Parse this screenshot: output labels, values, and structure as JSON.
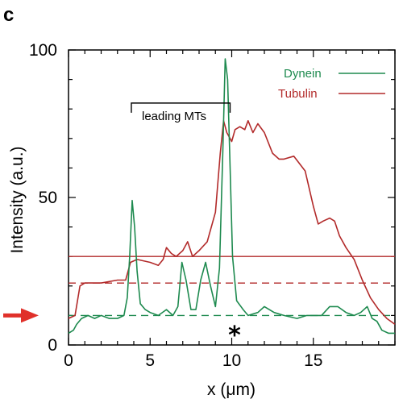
{
  "panel_label": "c",
  "colors": {
    "dynein": "#1e8a4f",
    "tubulin": "#b22a2a",
    "arrow": "#e0302a"
  },
  "chart_data": {
    "type": "line",
    "xlabel": "x (μm)",
    "ylabel": "Intensity (a.u.)",
    "xlim": [
      0,
      20
    ],
    "ylim": [
      0,
      100
    ],
    "x_ticks": [
      0,
      5,
      10,
      15
    ],
    "y_ticks": [
      0,
      50,
      100
    ],
    "legend_position": "top-right",
    "series": [
      {
        "name": "Dynein",
        "color": "#1e8a4f",
        "points": [
          [
            0,
            4
          ],
          [
            0.3,
            5
          ],
          [
            0.5,
            7
          ],
          [
            0.8,
            9
          ],
          [
            1.2,
            10
          ],
          [
            1.6,
            9
          ],
          [
            2.0,
            10
          ],
          [
            2.5,
            9
          ],
          [
            3.0,
            9
          ],
          [
            3.4,
            10
          ],
          [
            3.6,
            16
          ],
          [
            3.75,
            30
          ],
          [
            3.9,
            49
          ],
          [
            4.05,
            40
          ],
          [
            4.2,
            25
          ],
          [
            4.4,
            14
          ],
          [
            4.7,
            12
          ],
          [
            5.0,
            11
          ],
          [
            5.5,
            10
          ],
          [
            6.0,
            12
          ],
          [
            6.4,
            10
          ],
          [
            6.7,
            13
          ],
          [
            6.95,
            28
          ],
          [
            7.2,
            22
          ],
          [
            7.5,
            12
          ],
          [
            7.8,
            12
          ],
          [
            8.1,
            22
          ],
          [
            8.4,
            28
          ],
          [
            8.7,
            20
          ],
          [
            9.0,
            13
          ],
          [
            9.25,
            26
          ],
          [
            9.45,
            65
          ],
          [
            9.6,
            97
          ],
          [
            9.75,
            90
          ],
          [
            9.9,
            60
          ],
          [
            10.05,
            30
          ],
          [
            10.3,
            15
          ],
          [
            10.7,
            12
          ],
          [
            11.0,
            10
          ],
          [
            11.6,
            11
          ],
          [
            12.0,
            13
          ],
          [
            12.6,
            11
          ],
          [
            13.2,
            10
          ],
          [
            14.0,
            9
          ],
          [
            14.6,
            10
          ],
          [
            15.0,
            10
          ],
          [
            15.5,
            10
          ],
          [
            16.0,
            13
          ],
          [
            16.5,
            13
          ],
          [
            17.0,
            11
          ],
          [
            17.5,
            10
          ],
          [
            17.9,
            11
          ],
          [
            18.3,
            13
          ],
          [
            18.6,
            9
          ],
          [
            18.9,
            8
          ],
          [
            19.2,
            5
          ],
          [
            19.6,
            4
          ],
          [
            20,
            4
          ]
        ]
      },
      {
        "name": "Tubulin",
        "color": "#b22a2a",
        "points": [
          [
            0,
            9
          ],
          [
            0.4,
            10
          ],
          [
            0.7,
            20
          ],
          [
            1.0,
            21
          ],
          [
            2.0,
            21
          ],
          [
            3.0,
            22
          ],
          [
            3.5,
            22
          ],
          [
            3.8,
            28
          ],
          [
            4.2,
            29
          ],
          [
            5.0,
            28
          ],
          [
            5.5,
            27
          ],
          [
            5.8,
            29
          ],
          [
            6.0,
            33
          ],
          [
            6.3,
            31
          ],
          [
            6.6,
            30
          ],
          [
            7.0,
            32
          ],
          [
            7.3,
            35
          ],
          [
            7.6,
            30
          ],
          [
            8.0,
            32
          ],
          [
            8.5,
            35
          ],
          [
            9.0,
            45
          ],
          [
            9.3,
            65
          ],
          [
            9.5,
            76
          ],
          [
            9.7,
            72
          ],
          [
            10.0,
            69
          ],
          [
            10.2,
            73
          ],
          [
            10.5,
            74
          ],
          [
            10.8,
            73
          ],
          [
            11.0,
            76
          ],
          [
            11.3,
            72
          ],
          [
            11.6,
            75
          ],
          [
            12.0,
            72
          ],
          [
            12.5,
            65
          ],
          [
            12.9,
            63
          ],
          [
            13.2,
            63
          ],
          [
            13.8,
            64
          ],
          [
            14.5,
            59
          ],
          [
            15.0,
            47
          ],
          [
            15.3,
            41
          ],
          [
            15.6,
            42
          ],
          [
            16.0,
            43
          ],
          [
            16.3,
            42
          ],
          [
            16.6,
            37
          ],
          [
            17.0,
            33
          ],
          [
            17.5,
            29
          ],
          [
            18.0,
            22
          ],
          [
            18.5,
            16
          ],
          [
            19.0,
            12
          ],
          [
            19.5,
            9
          ],
          [
            20,
            7
          ]
        ]
      }
    ],
    "reference_lines": [
      {
        "series": "Tubulin",
        "y": 30,
        "style": "solid"
      },
      {
        "series": "Tubulin",
        "y": 21,
        "style": "dashed"
      },
      {
        "series": "Dynein",
        "y": 10,
        "style": "dashed"
      }
    ],
    "annotations": {
      "bracket_label": "leading MTs",
      "bracket_x": [
        3.85,
        9.9
      ],
      "bracket_y": 82,
      "star_label": "*",
      "star_x": 10.05,
      "star_y": 4,
      "arrow_y": 10
    }
  }
}
